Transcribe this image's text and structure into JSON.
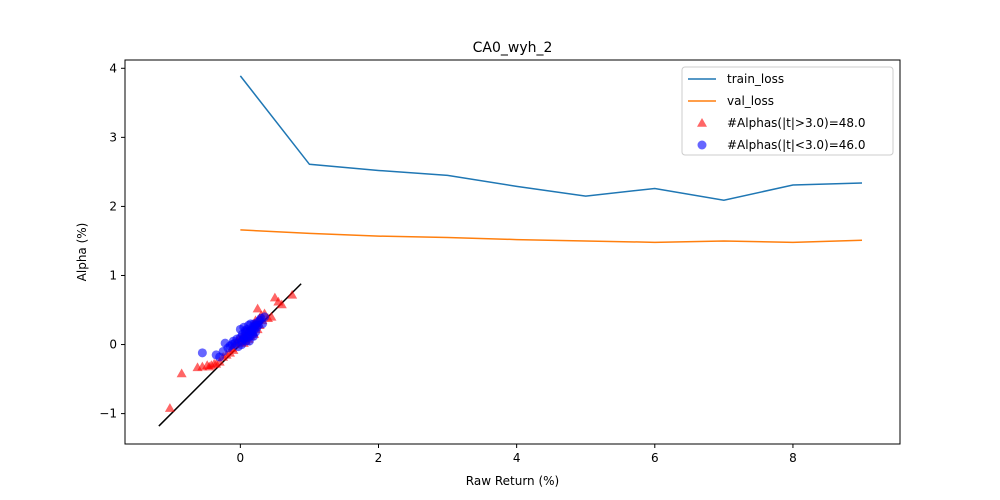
{
  "chart_data": {
    "type": "line",
    "title": "CA0_wyh_2",
    "xlabel": "Raw Return (%)",
    "ylabel": "Alpha (%)",
    "xlim": [
      -1.67,
      9.55
    ],
    "ylim": [
      -1.44,
      4.12
    ],
    "x_ticks": [
      0,
      2,
      4,
      6,
      8
    ],
    "y_ticks": [
      -1,
      0,
      1,
      2,
      3,
      4
    ],
    "x_tick_labels": [
      "0",
      "2",
      "4",
      "6",
      "8"
    ],
    "y_tick_labels": [
      "−1",
      "0",
      "1",
      "2",
      "3",
      "4"
    ],
    "legend_position": "top-right",
    "grid": false,
    "series": [
      {
        "name": "train_loss",
        "kind": "line",
        "color": "#1f77b4",
        "x": [
          0,
          1,
          2,
          3,
          4,
          5,
          6,
          7,
          8,
          9
        ],
        "y": [
          3.89,
          2.61,
          2.52,
          2.45,
          2.29,
          2.15,
          2.26,
          2.09,
          2.31,
          2.34
        ]
      },
      {
        "name": "val_loss",
        "kind": "line",
        "color": "#ff7f0e",
        "x": [
          0,
          1,
          2,
          3,
          4,
          5,
          6,
          7,
          8,
          9
        ],
        "y": [
          1.66,
          1.61,
          1.57,
          1.55,
          1.52,
          1.5,
          1.48,
          1.5,
          1.48,
          1.51
        ]
      },
      {
        "name": "#Alphas(|t|>3.0)=48.0",
        "kind": "scatter",
        "marker": "triangle",
        "color": "#ff0000",
        "x": [
          -1.02,
          -0.85,
          -0.62,
          -0.55,
          -0.48,
          -0.42,
          -0.38,
          -0.3,
          -0.25,
          -0.2,
          -0.15,
          -0.12,
          -0.08,
          -0.05,
          -0.02,
          0.02,
          0.05,
          0.08,
          0.1,
          0.12,
          0.15,
          0.18,
          0.2,
          0.22,
          0.25,
          0.28,
          0.3,
          0.35,
          0.4,
          0.5,
          0.55,
          0.6,
          0.75,
          0.05,
          0.12,
          0.2,
          0.08,
          0.15,
          0.25,
          -0.45,
          -0.35,
          0.0,
          0.1,
          0.18,
          0.28,
          0.32,
          0.45,
          -0.1
        ],
        "y": [
          -0.92,
          -0.42,
          -0.33,
          -0.32,
          -0.3,
          -0.3,
          -0.28,
          -0.25,
          -0.18,
          -0.15,
          -0.12,
          -0.05,
          0.0,
          0.05,
          0.08,
          0.1,
          0.12,
          0.15,
          0.18,
          0.2,
          0.22,
          0.25,
          0.3,
          0.35,
          0.52,
          0.38,
          0.42,
          0.45,
          0.38,
          0.68,
          0.62,
          0.58,
          0.72,
          0.02,
          0.08,
          0.15,
          0.05,
          0.12,
          0.22,
          -0.32,
          -0.28,
          0.03,
          0.12,
          0.18,
          0.28,
          0.35,
          0.4,
          -0.08
        ]
      },
      {
        "name": "#Alphas(|t|<3.0)=46.0",
        "kind": "scatter",
        "marker": "circle",
        "color": "#0000ff",
        "x": [
          -0.55,
          -0.35,
          -0.3,
          -0.25,
          -0.22,
          -0.18,
          -0.15,
          -0.12,
          -0.1,
          -0.08,
          -0.05,
          -0.03,
          0.0,
          0.0,
          0.02,
          0.03,
          0.05,
          0.05,
          0.06,
          0.08,
          0.08,
          0.1,
          0.1,
          0.12,
          0.12,
          0.14,
          0.15,
          0.15,
          0.16,
          0.18,
          0.18,
          0.2,
          0.2,
          0.22,
          0.22,
          0.24,
          0.25,
          0.26,
          0.28,
          0.3,
          0.32,
          0.35,
          0.02,
          0.07,
          0.13,
          0.19
        ],
        "y": [
          -0.12,
          -0.15,
          -0.18,
          -0.1,
          0.02,
          -0.05,
          -0.02,
          0.0,
          0.05,
          0.02,
          0.08,
          -0.03,
          0.1,
          0.22,
          0.05,
          0.15,
          0.08,
          0.25,
          0.12,
          0.05,
          0.18,
          0.1,
          0.22,
          0.15,
          0.28,
          0.12,
          0.2,
          0.3,
          0.18,
          0.15,
          0.25,
          0.22,
          0.3,
          0.18,
          0.28,
          0.25,
          0.32,
          0.28,
          0.35,
          0.38,
          0.3,
          0.4,
          0.0,
          0.2,
          0.05,
          0.12
        ]
      },
      {
        "name": "",
        "kind": "line",
        "color": "#000000",
        "x": [
          -1.18,
          0.88
        ],
        "y": [
          -1.18,
          0.88
        ]
      }
    ],
    "legend_entries": [
      {
        "label": "train_loss",
        "kind": "line",
        "color": "#1f77b4"
      },
      {
        "label": "val_loss",
        "kind": "line",
        "color": "#ff7f0e"
      },
      {
        "label": "#Alphas(|t|>3.0)=48.0",
        "kind": "triangle",
        "color": "#ff0000"
      },
      {
        "label": "#Alphas(|t|<3.0)=46.0",
        "kind": "circle",
        "color": "#0000ff"
      }
    ]
  }
}
